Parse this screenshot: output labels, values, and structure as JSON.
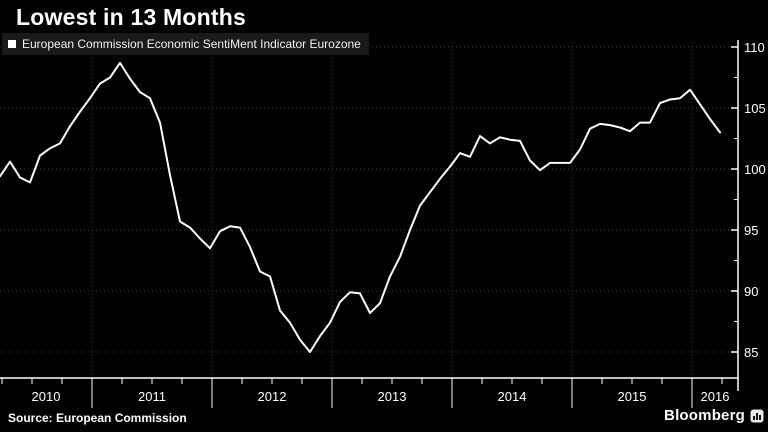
{
  "title": "Lowest in 13 Months",
  "legend": {
    "label": "European Commission Economic SentiMent Indicator Eurozone",
    "swatch_color": "#ffffff"
  },
  "source": "Source: European Commission",
  "brand": {
    "name": "Bloomberg",
    "icon": "bar-chart-icon"
  },
  "colors": {
    "background": "#000000",
    "line": "#ffffff",
    "grid": "#3d3d3d",
    "axis": "#ffffff",
    "legend_background": "#1a1a1a",
    "text": "#ffffff"
  },
  "chart_data": {
    "type": "line",
    "title": "Lowest in 13 Months",
    "series": [
      {
        "name": "European Commission Economic SentiMent Indicator Eurozone",
        "frequency": "monthly",
        "x_start": "2010-04",
        "x_end": "2016-04",
        "values": [
          99.4,
          100.6,
          99.3,
          98.9,
          101.1,
          101.7,
          102.1,
          103.5,
          104.7,
          105.8,
          107.0,
          107.5,
          108.7,
          107.4,
          106.3,
          105.8,
          103.8,
          99.5,
          95.7,
          95.2,
          94.3,
          93.5,
          94.9,
          95.3,
          95.2,
          93.6,
          91.6,
          91.2,
          88.4,
          87.4,
          86.0,
          85.0,
          86.3,
          87.4,
          89.1,
          89.9,
          89.8,
          88.2,
          89.0,
          91.2,
          92.8,
          95.0,
          97.0,
          98.1,
          99.2,
          100.2,
          101.3,
          101.0,
          102.7,
          102.1,
          102.6,
          102.4,
          102.3,
          100.7,
          99.9,
          100.5,
          100.5,
          100.5,
          101.6,
          103.3,
          103.7,
          103.6,
          103.4,
          103.1,
          103.8,
          103.8,
          105.4,
          105.7,
          105.8,
          106.5,
          105.3,
          104.1,
          103.0
        ]
      }
    ],
    "x_axis": {
      "tick_labels": [
        "2010",
        "2011",
        "2012",
        "2013",
        "2014",
        "2015",
        "2016"
      ],
      "minor_tick_unit": "quarter"
    },
    "y_axis": {
      "side": "right",
      "range": [
        83,
        110.5
      ],
      "major_ticks": [
        110,
        105,
        100,
        95,
        90,
        85
      ],
      "minor_ticks": [
        107.5,
        102.5,
        97.5,
        92.5,
        87.5
      ]
    },
    "grid": "dotted",
    "legend_position": "top-left"
  }
}
